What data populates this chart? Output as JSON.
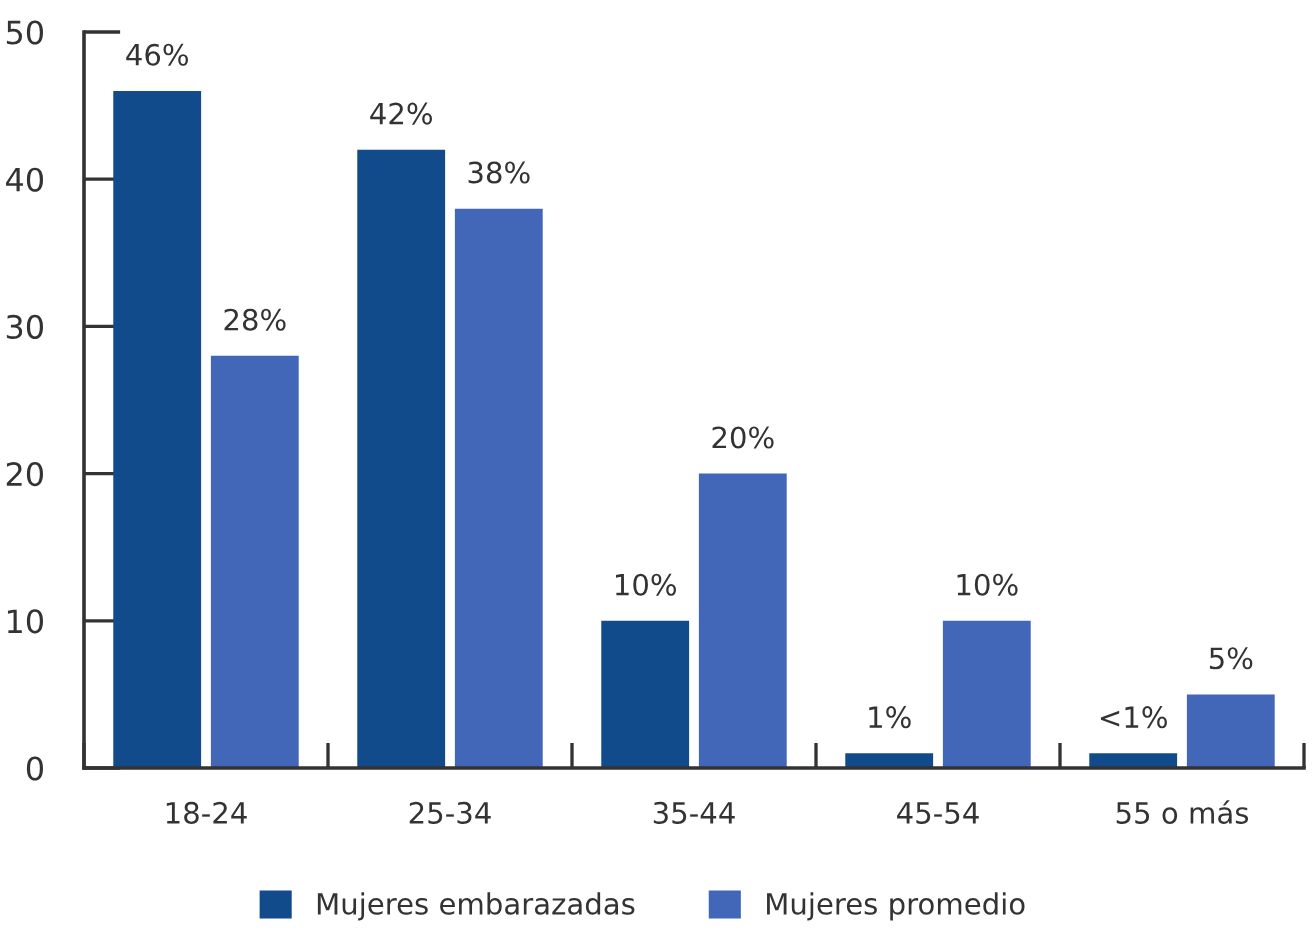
{
  "chart_data": {
    "type": "bar",
    "categories": [
      "18-24",
      "25-34",
      "35-44",
      "45-54",
      "55 o más"
    ],
    "series": [
      {
        "name": "Mujeres embarazadas",
        "color": "#114b8b",
        "values": [
          46,
          42,
          10,
          1,
          1
        ],
        "value_labels": [
          "46%",
          "42%",
          "10%",
          "1%",
          "<1%"
        ]
      },
      {
        "name": "Mujeres promedio",
        "color": "#4267b8",
        "values": [
          28,
          38,
          20,
          10,
          5
        ],
        "value_labels": [
          "28%",
          "38%",
          "20%",
          "10%",
          "5%"
        ]
      }
    ],
    "ylim": [
      0,
      50
    ],
    "yticks": [
      0,
      10,
      20,
      30,
      40,
      50
    ],
    "legend": "bottom"
  }
}
